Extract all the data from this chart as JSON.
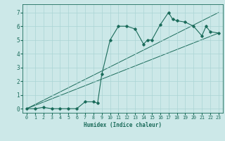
{
  "xlabel": "Humidex (Indice chaleur)",
  "bg_color": "#cce8e8",
  "line_color": "#1a6b5a",
  "grid_color": "#aad4d4",
  "xlim": [
    -0.5,
    23.5
  ],
  "ylim": [
    -0.3,
    7.6
  ],
  "xticks": [
    0,
    1,
    2,
    3,
    4,
    5,
    6,
    7,
    8,
    9,
    10,
    11,
    12,
    13,
    14,
    15,
    16,
    17,
    18,
    19,
    20,
    21,
    22,
    23
  ],
  "yticks": [
    0,
    1,
    2,
    3,
    4,
    5,
    6,
    7
  ],
  "scatter_x": [
    0,
    1,
    2,
    3,
    4,
    5,
    6,
    7,
    8,
    8.5,
    9,
    10,
    11,
    12,
    13,
    14,
    14.5,
    15,
    16,
    17,
    17.5,
    18,
    19,
    20,
    21,
    21.5,
    22,
    23
  ],
  "scatter_y": [
    0,
    0,
    0.1,
    0,
    0,
    0,
    0,
    0.5,
    0.5,
    0.4,
    2.5,
    5.0,
    6.0,
    6.0,
    5.8,
    4.7,
    5.0,
    5.0,
    6.1,
    7.0,
    6.5,
    6.4,
    6.3,
    6.0,
    5.3,
    6.0,
    5.6,
    5.5
  ],
  "line1_x": [
    0,
    23
  ],
  "line1_y": [
    0,
    5.5
  ],
  "line2_x": [
    0,
    23
  ],
  "line2_y": [
    0,
    7.0
  ]
}
